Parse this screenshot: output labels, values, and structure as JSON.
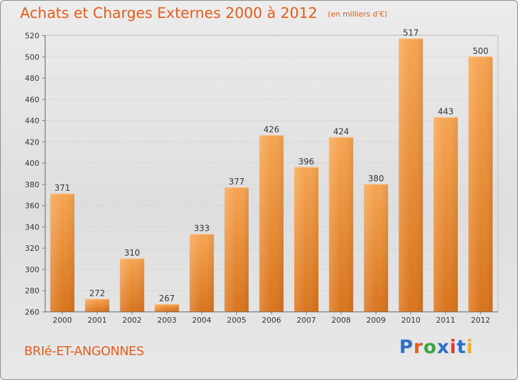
{
  "chart_data": {
    "type": "bar",
    "title": "Achats et Charges Externes 2000 à 2012",
    "subtitle": "(en milliers d'€)",
    "categories": [
      "2000",
      "2001",
      "2002",
      "2003",
      "2004",
      "2005",
      "2006",
      "2007",
      "2008",
      "2009",
      "2010",
      "2011",
      "2012"
    ],
    "values": [
      371,
      272,
      310,
      267,
      333,
      377,
      426,
      396,
      424,
      380,
      517,
      443,
      500
    ],
    "ylim": [
      260,
      520
    ],
    "yticks": [
      260,
      280,
      300,
      320,
      340,
      360,
      380,
      400,
      420,
      440,
      460,
      480,
      500,
      520
    ],
    "grid": true,
    "bar_color": "#f0922e",
    "accent_color": "#e65c1a"
  },
  "footer": {
    "commune": "BRIé-ET-ANGONNES",
    "logo_text": "Proxiti",
    "logo_colors": [
      "#2f6fc6",
      "#e65c1a",
      "#3aa53a",
      "#2f6fc6",
      "#e03a2f",
      "#2f6fc6",
      "#f0b21c"
    ]
  }
}
